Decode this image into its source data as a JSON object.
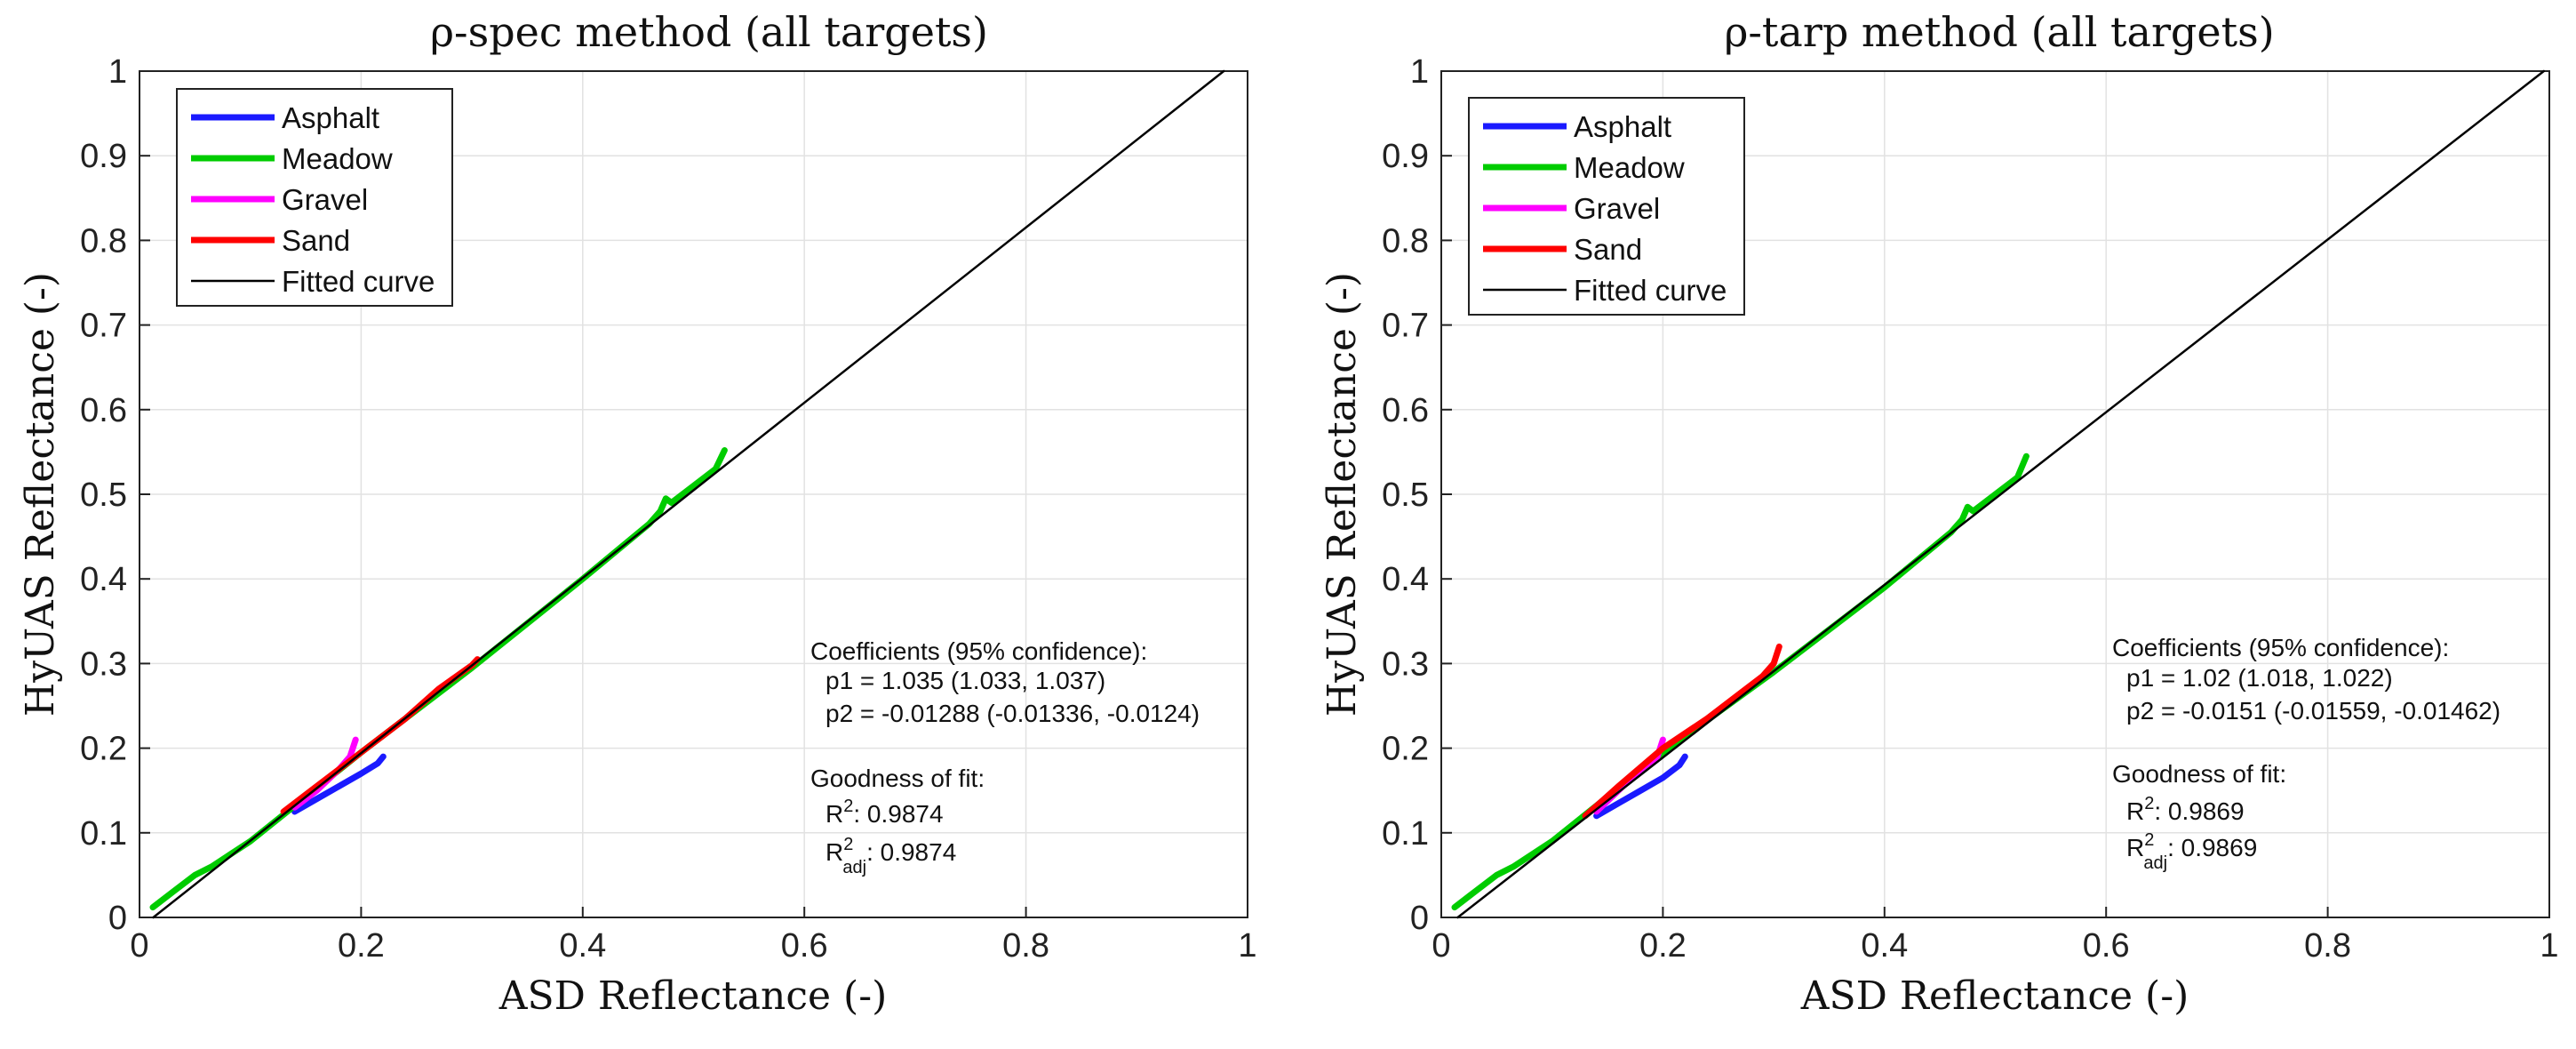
{
  "chart_data": [
    {
      "type": "line",
      "title": "ρ-spec method (all targets)",
      "xlabel": "ASD Reflectance (-)",
      "ylabel": "HyUAS Reflectance (-)",
      "xlim": [
        0,
        1
      ],
      "ylim": [
        0,
        1
      ],
      "xticks": [
        "0",
        "0.2",
        "0.4",
        "0.6",
        "0.8",
        "1"
      ],
      "yticks": [
        "0",
        "0.1",
        "0.2",
        "0.3",
        "0.4",
        "0.5",
        "0.6",
        "0.7",
        "0.8",
        "0.9",
        "1"
      ],
      "grid": true,
      "legend_position": "top-left",
      "legend": [
        "Asphalt",
        "Meadow",
        "Gravel",
        "Sand",
        "Fitted curve"
      ],
      "series": [
        {
          "name": "Asphalt",
          "color": "#1a1aff",
          "x": [
            0.14,
            0.16,
            0.18,
            0.2,
            0.215,
            0.22
          ],
          "y": [
            0.125,
            0.14,
            0.155,
            0.17,
            0.182,
            0.19
          ]
        },
        {
          "name": "Meadow",
          "color": "#00cc00",
          "x": [
            0.012,
            0.03,
            0.05,
            0.065,
            0.1,
            0.2,
            0.3,
            0.4,
            0.46,
            0.47,
            0.475,
            0.48,
            0.5,
            0.52,
            0.528
          ],
          "y": [
            0.012,
            0.03,
            0.05,
            0.06,
            0.09,
            0.195,
            0.295,
            0.4,
            0.465,
            0.48,
            0.495,
            0.49,
            0.51,
            0.53,
            0.552
          ]
        },
        {
          "name": "Gravel",
          "color": "#ff00ff",
          "x": [
            0.14,
            0.16,
            0.18,
            0.19,
            0.195
          ],
          "y": [
            0.13,
            0.15,
            0.175,
            0.19,
            0.21
          ]
        },
        {
          "name": "Sand",
          "color": "#ff0000",
          "x": [
            0.13,
            0.16,
            0.2,
            0.24,
            0.27,
            0.3,
            0.305
          ],
          "y": [
            0.125,
            0.155,
            0.195,
            0.235,
            0.27,
            0.298,
            0.305
          ]
        },
        {
          "name": "Fitted curve",
          "color": "#000000",
          "x": [
            0.01245,
            0.9785
          ],
          "y": [
            0,
            1
          ]
        }
      ],
      "annotation": {
        "coef_header": "Coefficients (95% confidence):",
        "p1": "p1 = 1.035  (1.033, 1.037)",
        "p2": "p2 = -0.01288  (-0.01336, -0.0124)",
        "gof_header": "Goodness of fit:",
        "r2_label": "R",
        "r2_sup": "2",
        "r2_value": ": 0.9874",
        "r2adj_label": "R",
        "r2adj_sup": "2",
        "r2adj_sub": "adj",
        "r2adj_value": ": 0.9874"
      }
    },
    {
      "type": "line",
      "title": "ρ-tarp method (all targets)",
      "xlabel": "ASD Reflectance (-)",
      "ylabel": "HyUAS Reflectance (-)",
      "xlim": [
        0,
        1
      ],
      "ylim": [
        0,
        1
      ],
      "xticks": [
        "0",
        "0.2",
        "0.4",
        "0.6",
        "0.8",
        "1"
      ],
      "yticks": [
        "0",
        "0.1",
        "0.2",
        "0.3",
        "0.4",
        "0.5",
        "0.6",
        "0.7",
        "0.8",
        "0.9",
        "1"
      ],
      "grid": true,
      "legend_position": "top-left",
      "legend": [
        "Asphalt",
        "Meadow",
        "Gravel",
        "Sand",
        "Fitted curve"
      ],
      "series": [
        {
          "name": "Asphalt",
          "color": "#1a1aff",
          "x": [
            0.14,
            0.16,
            0.18,
            0.2,
            0.215,
            0.22
          ],
          "y": [
            0.12,
            0.135,
            0.15,
            0.165,
            0.18,
            0.19
          ]
        },
        {
          "name": "Meadow",
          "color": "#00cc00",
          "x": [
            0.012,
            0.03,
            0.05,
            0.065,
            0.1,
            0.2,
            0.3,
            0.4,
            0.46,
            0.47,
            0.475,
            0.48,
            0.5,
            0.52,
            0.528
          ],
          "y": [
            0.012,
            0.03,
            0.05,
            0.06,
            0.09,
            0.195,
            0.29,
            0.39,
            0.455,
            0.47,
            0.485,
            0.48,
            0.5,
            0.52,
            0.545
          ]
        },
        {
          "name": "Gravel",
          "color": "#ff00ff",
          "x": [
            0.14,
            0.16,
            0.18,
            0.195,
            0.2
          ],
          "y": [
            0.125,
            0.15,
            0.175,
            0.19,
            0.21
          ]
        },
        {
          "name": "Sand",
          "color": "#ff0000",
          "x": [
            0.13,
            0.16,
            0.2,
            0.24,
            0.27,
            0.29,
            0.3,
            0.305
          ],
          "y": [
            0.12,
            0.155,
            0.2,
            0.235,
            0.265,
            0.285,
            0.3,
            0.32
          ]
        },
        {
          "name": "Fitted curve",
          "color": "#000000",
          "x": [
            0.0148,
            0.995
          ],
          "y": [
            0,
            1
          ]
        }
      ],
      "annotation": {
        "coef_header": "Coefficients (95% confidence):",
        "p1": "p1 = 1.02  (1.018, 1.022)",
        "p2": "p2 = -0.0151 (-0.01559, -0.01462)",
        "gof_header": "Goodness of fit:",
        "r2_label": "R",
        "r2_sup": "2",
        "r2_value": ": 0.9869",
        "r2adj_label": "R",
        "r2adj_sup": "2",
        "r2adj_sub": "adj",
        "r2adj_value": ": 0.9869"
      }
    }
  ]
}
